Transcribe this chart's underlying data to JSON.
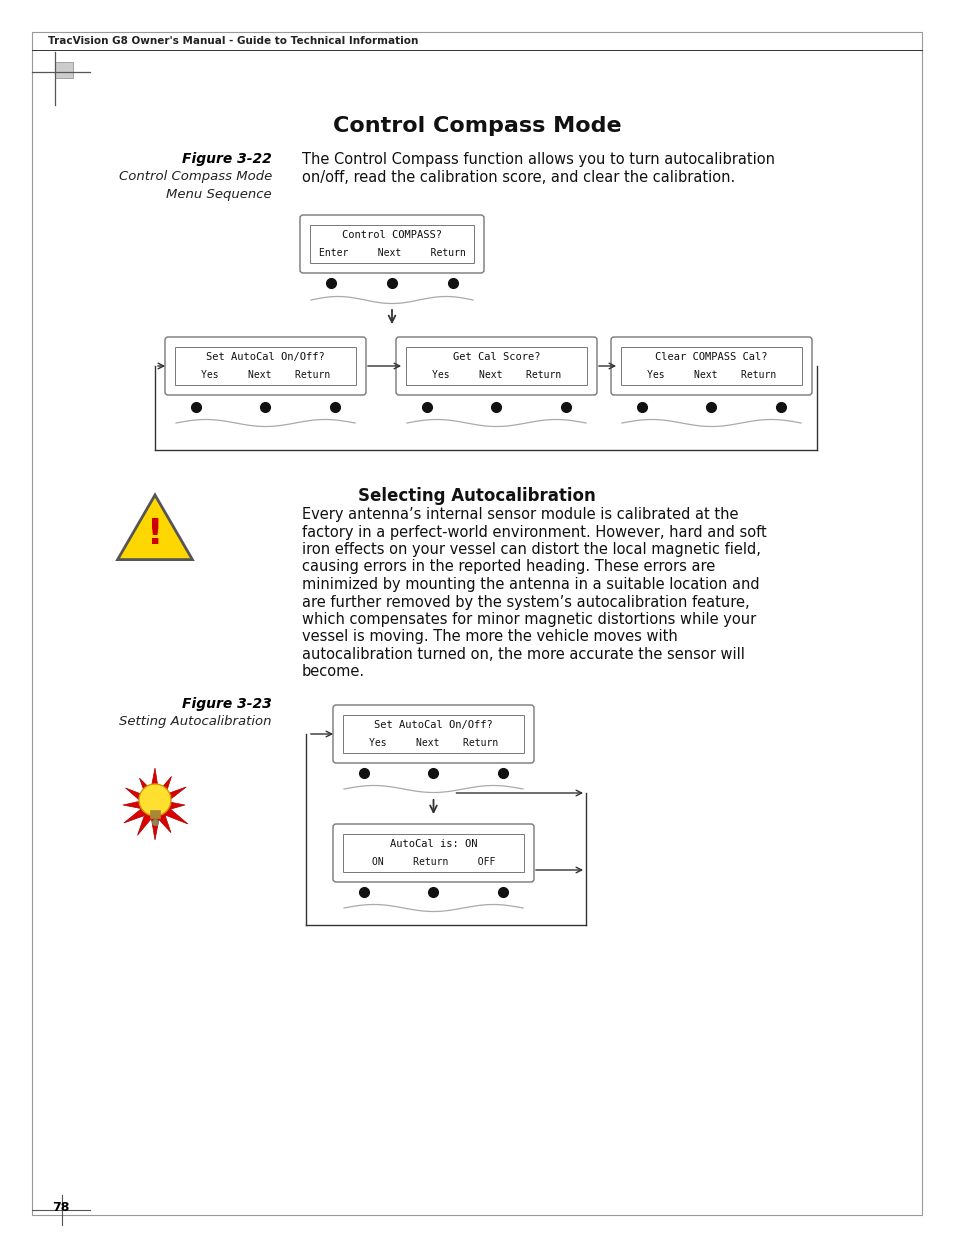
{
  "title": "Control Compass Mode",
  "header_text": "TracVision G8 Owner's Manual - Guide to Technical Information",
  "fig322_label": "Figure 3-22",
  "fig322_caption1": "Control Compass Mode",
  "fig322_caption2": "Menu Sequence",
  "fig322_desc1": "The Control Compass function allows you to turn autocalibration",
  "fig322_desc2": "on/off, read the calibration score, and clear the calibration.",
  "box1_line1": "Control COMPASS?",
  "box1_line2": "Enter     Next     Return",
  "box2_line1": "Set AutoCal On/Off?",
  "box2_line2": "Yes     Next    Return",
  "box3_line1": "Get Cal Score?",
  "box3_line2": "Yes     Next    Return",
  "box4_line1": "Clear COMPASS Cal?",
  "box4_line2": "Yes     Next    Return",
  "section2_title": "Selecting Autocalibration",
  "section2_body": [
    "Every antenna’s internal sensor module is calibrated at the",
    "factory in a perfect-world environment. However, hard and soft",
    "iron effects on your vessel can distort the local magnetic field,",
    "causing errors in the reported heading. These errors are",
    "minimized by mounting the antenna in a suitable location and",
    "are further removed by the system’s autocalibration feature,",
    "which compensates for minor magnetic distortions while your",
    "vessel is moving. The more the vehicle moves with",
    "autocalibration turned on, the more accurate the sensor will",
    "become."
  ],
  "fig323_label": "Figure 3-23",
  "fig323_caption": "Setting Autocalibration",
  "fig323_box1_line1": "Set AutoCal On/Off?",
  "fig323_box1_line2": "Yes     Next    Return",
  "fig323_box2_line1": "AutoCal is: ON",
  "fig323_box2_line2": "ON     Return     OFF",
  "page_number": "78",
  "bg_color": "#ffffff",
  "box_border_color": "#666666",
  "text_color": "#000000"
}
